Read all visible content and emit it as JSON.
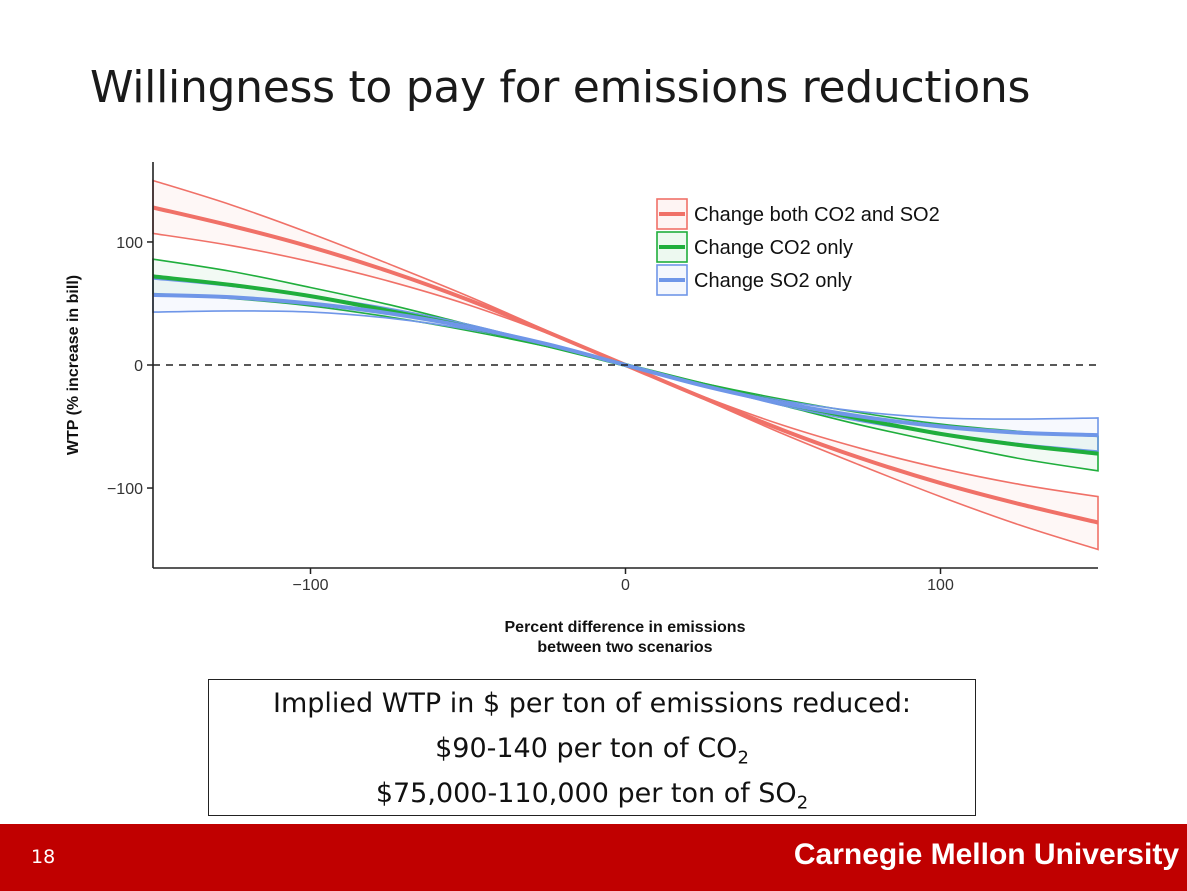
{
  "slide": {
    "title": "Willingness to pay for emissions reductions",
    "number": "18",
    "footer_org": "Carnegie Mellon University"
  },
  "wtp_box": {
    "line1": "Implied WTP in $ per ton of emissions reduced:",
    "line2_text": "$90-140 per ton of CO",
    "line2_sub": "2",
    "line3_text": "$75,000-110,000 per ton of SO",
    "line3_sub": "2"
  },
  "chart_data": {
    "type": "line",
    "title": "",
    "xlabel_line1": "Percent difference in emissions",
    "xlabel_line2": "between two scenarios",
    "ylabel": "WTP (% increase in bill)",
    "xlim": [
      -150,
      150
    ],
    "ylim": [
      -165,
      165
    ],
    "x_ticks": [
      -100,
      0,
      100
    ],
    "x_tick_labels": [
      "−100",
      "0",
      "100"
    ],
    "y_ticks": [
      -100,
      0,
      100
    ],
    "y_tick_labels": [
      "−100",
      "0",
      "100"
    ],
    "grid": false,
    "reference_line": {
      "y": 0,
      "style": "dashed"
    },
    "legend_position": "top-right",
    "x": [
      -150,
      -125,
      -100,
      -75,
      -50,
      -25,
      0,
      25,
      50,
      75,
      100,
      125,
      150
    ],
    "series": [
      {
        "name": "Change both CO2 and SO2",
        "color": "#f07168",
        "values": [
          128,
          113,
          96,
          76,
          53,
          27,
          0,
          -27,
          -53,
          -76,
          -96,
          -113,
          -128
        ],
        "upper": [
          150,
          130,
          107,
          82,
          56,
          28,
          0,
          -26,
          -49,
          -68,
          -84,
          -97,
          -107
        ],
        "lower": [
          107,
          97,
          84,
          68,
          49,
          26,
          0,
          -28,
          -56,
          -82,
          -107,
          -130,
          -150
        ]
      },
      {
        "name": "Change CO2 only",
        "color": "#1fae3c",
        "values": [
          72,
          65,
          56,
          44,
          31,
          16,
          0,
          -16,
          -31,
          -44,
          -56,
          -65,
          -72
        ],
        "upper": [
          86,
          76,
          63,
          49,
          33,
          17,
          0,
          -15,
          -28,
          -39,
          -48,
          -54,
          -58
        ],
        "lower": [
          58,
          54,
          48,
          39,
          28,
          15,
          0,
          -17,
          -33,
          -49,
          -63,
          -76,
          -86
        ]
      },
      {
        "name": "Change SO2 only",
        "color": "#6f96e8",
        "values": [
          57,
          55,
          50,
          42,
          31,
          17,
          0,
          -17,
          -31,
          -42,
          -50,
          -55,
          -57
        ],
        "upper": [
          70,
          64,
          56,
          46,
          33,
          17,
          0,
          -16,
          -29,
          -38,
          -43,
          -44,
          -43
        ],
        "lower": [
          43,
          44,
          43,
          38,
          29,
          16,
          0,
          -17,
          -33,
          -46,
          -56,
          -64,
          -70
        ]
      }
    ]
  }
}
